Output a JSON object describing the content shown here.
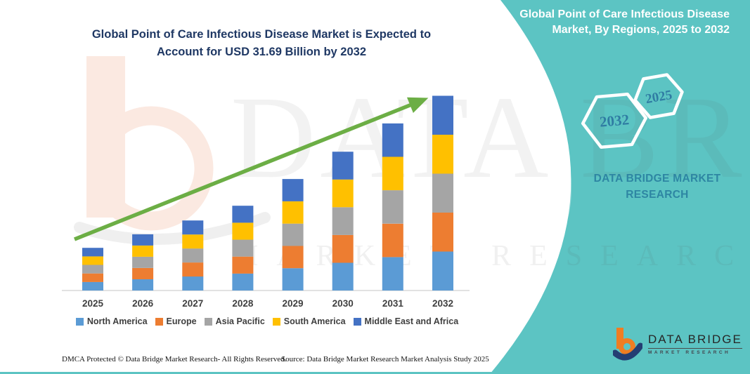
{
  "header": {
    "main_title": "Global Point of Care Infectious Disease Market is Expected to Account for USD 31.69 Billion by 2032"
  },
  "side_panel": {
    "title": "Global Point of Care Infectious Disease Market, By Regions, 2025 to 2032",
    "hexagons": [
      {
        "label": "2032"
      },
      {
        "label": "2025"
      }
    ],
    "brand_line1": "DATA BRIDGE MARKET",
    "brand_line2": "RESEARCH",
    "colors": {
      "panel": "#5CC4C3",
      "hexagon_outline": "#FFFFFF",
      "hexagon_text": "#2F7CA3",
      "brand_text": "#2E86A3"
    }
  },
  "watermark": {
    "line1": "DATA BRIDGE",
    "line2": "MARKET RESEARCH"
  },
  "chart_data": {
    "type": "bar",
    "stacked": true,
    "title": "Global Point of Care Infectious Disease Market, By Regions, 2025 to 2032",
    "unit": "USD Billion",
    "categories": [
      "2025",
      "2026",
      "2027",
      "2028",
      "2029",
      "2030",
      "2031",
      "2032"
    ],
    "series": [
      {
        "name": "North America",
        "color": "#5B9BD5",
        "values": [
          1.39,
          1.83,
          2.28,
          2.76,
          3.63,
          4.52,
          5.44,
          6.34
        ]
      },
      {
        "name": "Europe",
        "color": "#ED7D31",
        "values": [
          1.39,
          1.83,
          2.28,
          2.76,
          3.63,
          4.52,
          5.44,
          6.34
        ]
      },
      {
        "name": "Asia Pacific",
        "color": "#A5A5A5",
        "values": [
          1.39,
          1.83,
          2.28,
          2.76,
          3.63,
          4.52,
          5.44,
          6.34
        ]
      },
      {
        "name": "South America",
        "color": "#FFC000",
        "values": [
          1.39,
          1.83,
          2.28,
          2.76,
          3.63,
          4.52,
          5.44,
          6.34
        ]
      },
      {
        "name": "Middle East and Africa",
        "color": "#4472C4",
        "values": [
          1.39,
          1.83,
          2.28,
          2.76,
          3.63,
          4.52,
          5.44,
          6.34
        ]
      }
    ],
    "totals": [
      6.95,
      9.15,
      11.4,
      13.8,
      18.15,
      22.6,
      27.2,
      31.69
    ],
    "ylim": [
      0,
      33.6
    ],
    "gridlines": false,
    "axis_line_color": "#D9D9D9",
    "tick_label_color": "#3F3F3F",
    "legend_position": "bottom",
    "trend_arrow": true,
    "trend_arrow_color": "#6CAE45"
  },
  "footer": {
    "left": "DMCA Protected © Data Bridge Market Research-  All Rights Reserved.",
    "source": "Source: Data Bridge Market Research  Market Analysis Study 2025"
  },
  "logo": {
    "name": "DATA BRIDGE",
    "sub": "MARKET RESEARCH"
  }
}
